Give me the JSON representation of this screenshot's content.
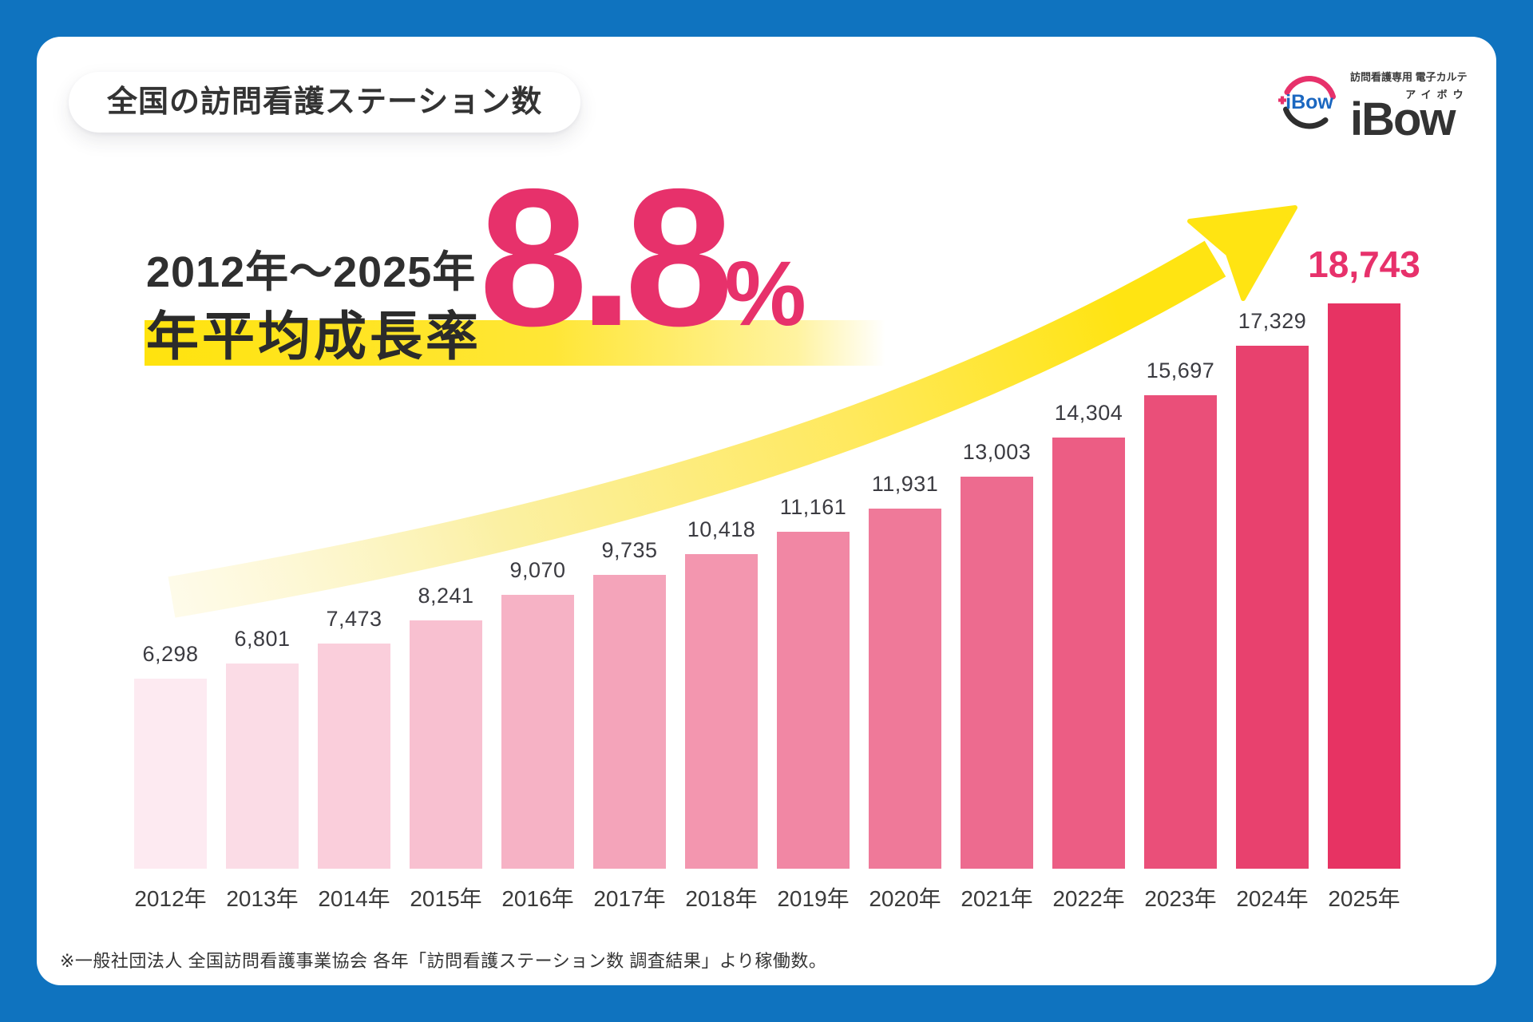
{
  "page": {
    "background_color": "#0f73bf",
    "card_color": "#ffffff"
  },
  "header": {
    "title_badge": "全国の訪問看護ステーション数",
    "logo": {
      "emblem_text": "iBow",
      "tagline": "訪問看護専用 電子カルテ",
      "brand": "iBow",
      "brand_ruby": "アイボウ",
      "emblem_pink": "#e7316b",
      "emblem_blue": "#1b67c0",
      "emblem_dark": "#2e2e2e"
    }
  },
  "headline": {
    "period": "2012年〜2025年",
    "label": "年平均成長率",
    "rate": "8.8",
    "unit": "%",
    "accent_color": "#e7316b",
    "highlight_yellow": "#ffe412",
    "arrow_yellow_light": "#fdf6cf",
    "arrow_yellow": "#ffe412"
  },
  "chart_data": {
    "type": "bar",
    "title": "全国の訪問看護ステーション数",
    "categories": [
      "2012年",
      "2013年",
      "2014年",
      "2015年",
      "2016年",
      "2017年",
      "2018年",
      "2019年",
      "2020年",
      "2021年",
      "2022年",
      "2023年",
      "2024年",
      "2025年"
    ],
    "values": [
      6298,
      6801,
      7473,
      8241,
      9070,
      9735,
      10418,
      11161,
      11931,
      13003,
      14304,
      15697,
      17329,
      18743
    ],
    "value_labels": [
      "6,298",
      "6,801",
      "7,473",
      "8,241",
      "9,070",
      "9,735",
      "10,418",
      "11,161",
      "11,931",
      "13,003",
      "14,304",
      "15,697",
      "17,329",
      "18,743"
    ],
    "bar_colors": [
      "#fdeaf1",
      "#fbdce6",
      "#facedb",
      "#f8c0d0",
      "#f6b2c5",
      "#f4a4ba",
      "#f396af",
      "#f187a4",
      "#ef7999",
      "#ed6b8f",
      "#ec5d84",
      "#ea4f79",
      "#e8416e",
      "#e73363"
    ],
    "ylim": [
      0,
      18743
    ],
    "xlabel": "",
    "ylabel": "",
    "grid": false,
    "legend": false,
    "value_label_color": "#3b3b41",
    "final_value_label_color": "#e7316b",
    "annotation": "yellow growth arrow sweeping up from 2012 toward 2025"
  },
  "footnote": "※一般社団法人 全国訪問看護事業協会 各年「訪問看護ステーション数 調査結果」より稼働数。"
}
